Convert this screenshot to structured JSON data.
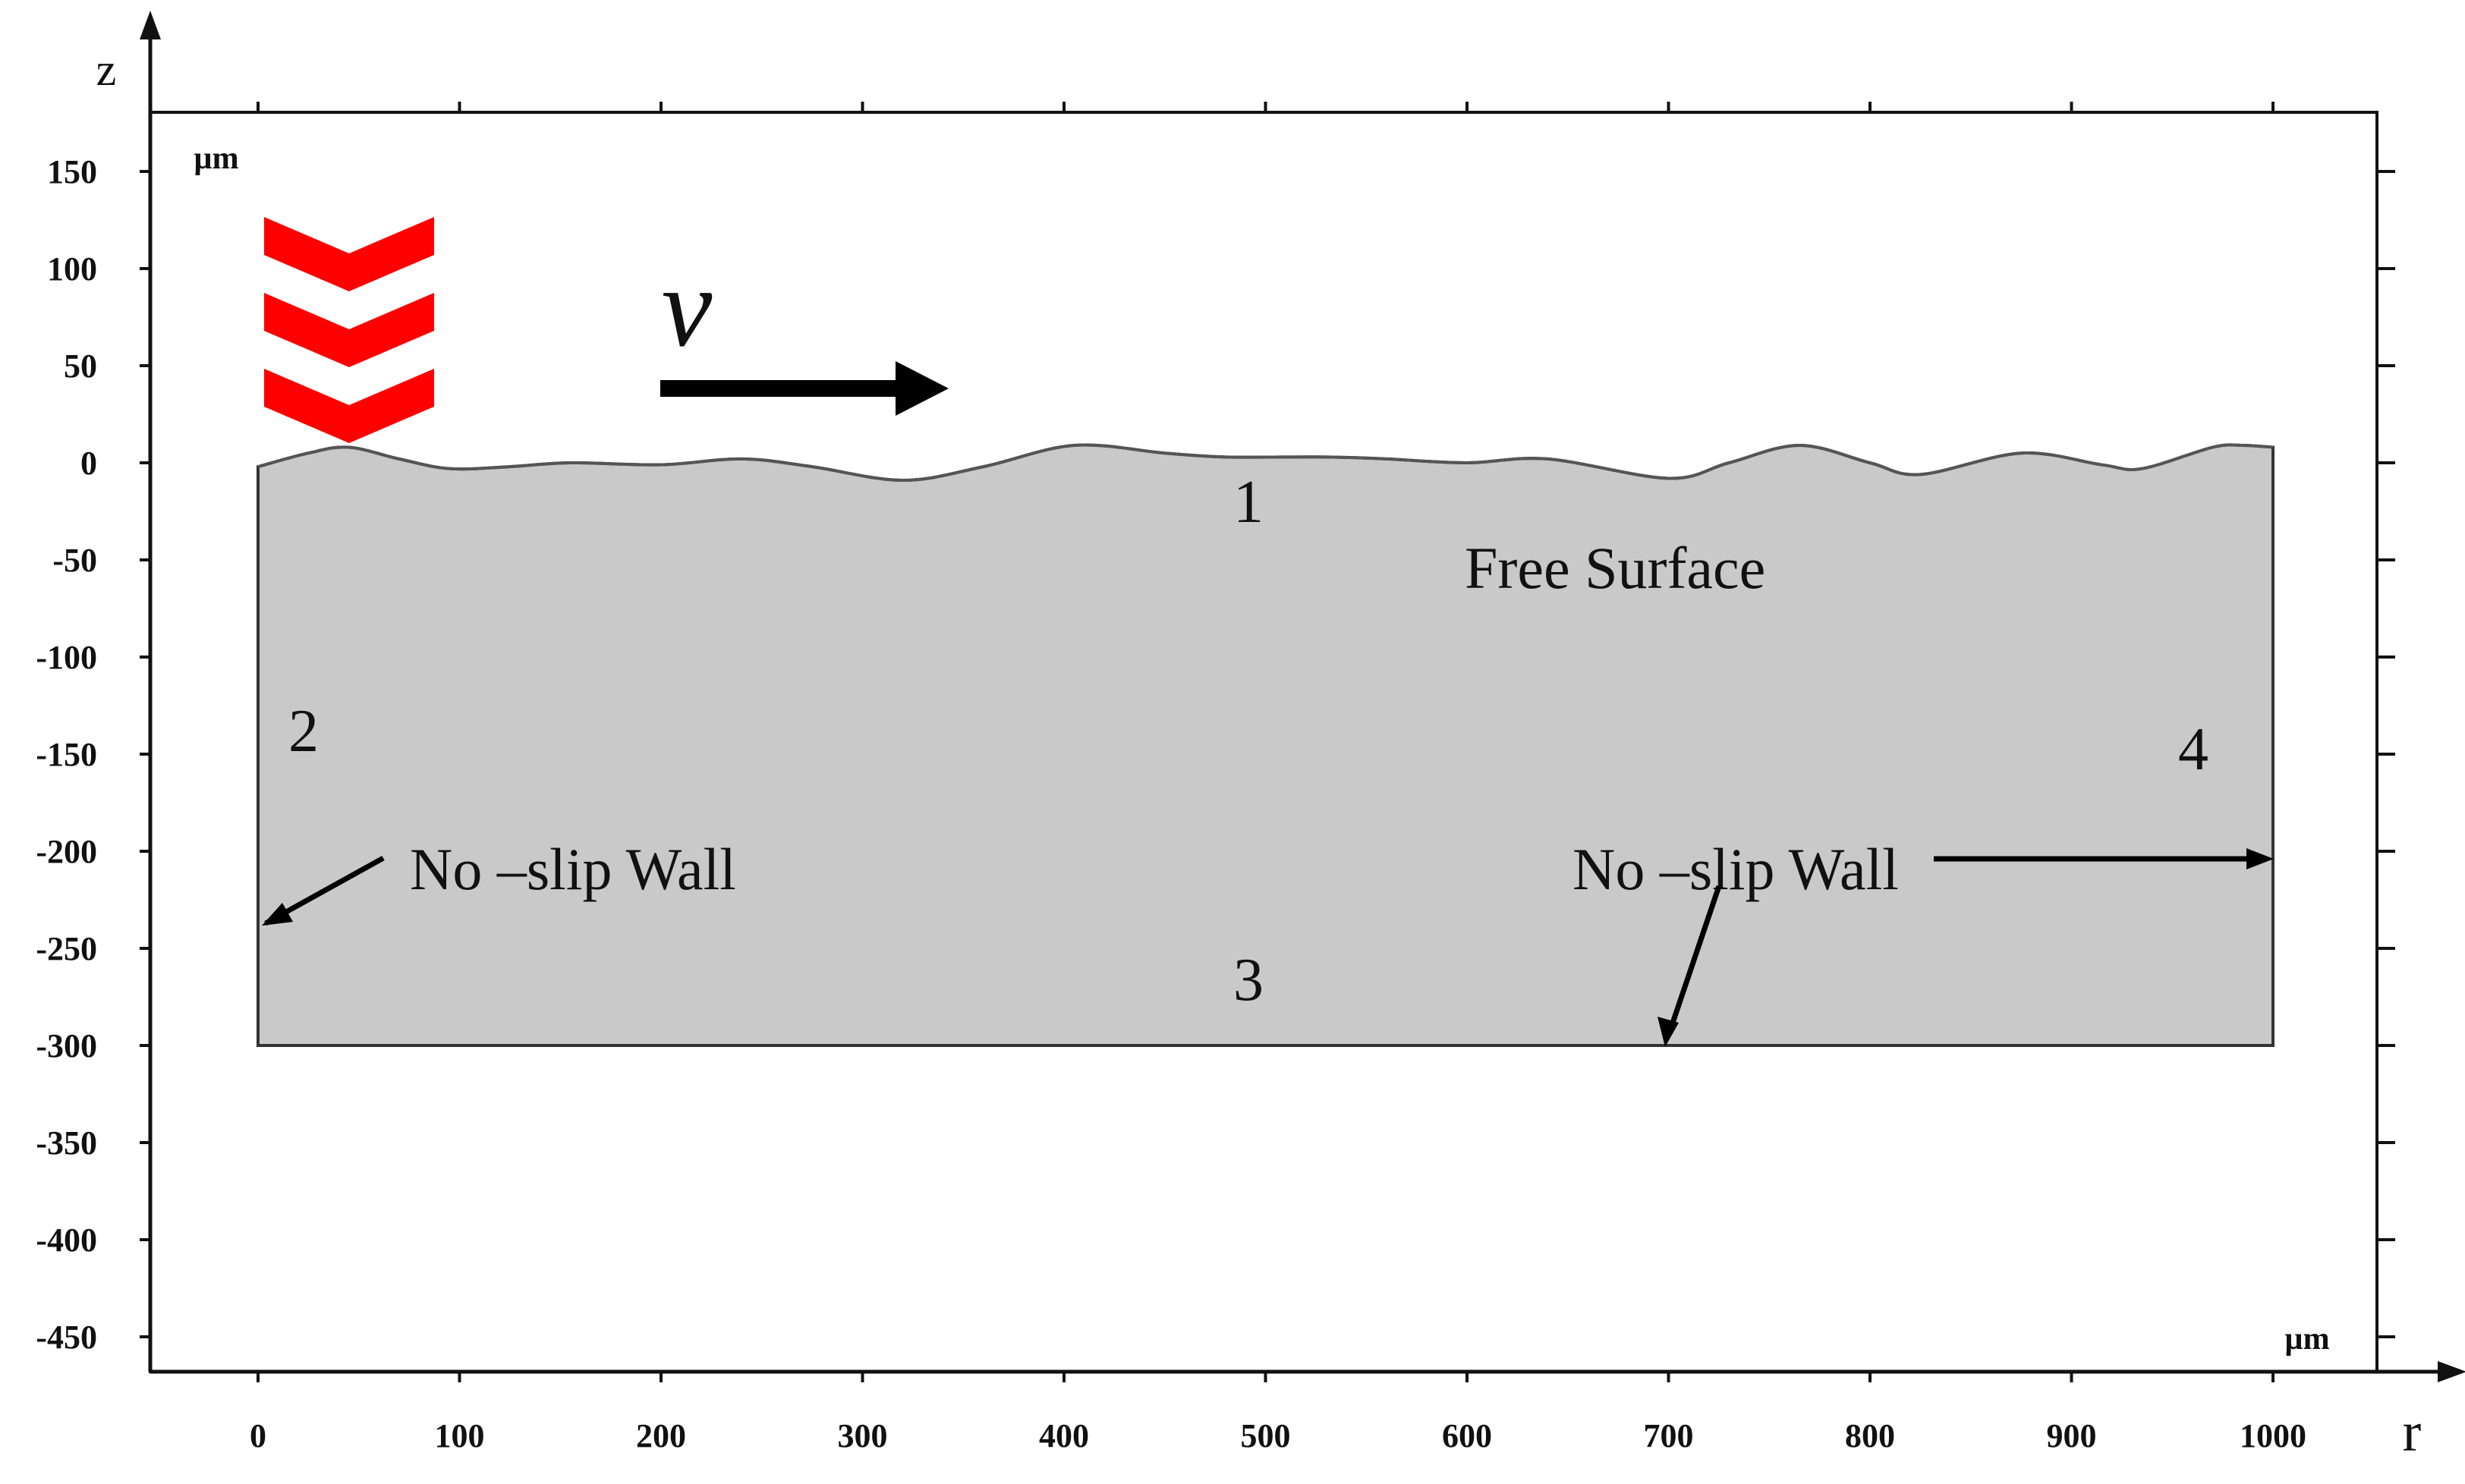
{
  "axes": {
    "x": {
      "name": "r",
      "unit": "µm",
      "ticks": [
        0,
        100,
        200,
        300,
        400,
        500,
        600,
        700,
        800,
        900,
        1000
      ]
    },
    "z": {
      "name": "z",
      "unit": "µm",
      "ticks": [
        150,
        100,
        50,
        0,
        -50,
        -100,
        -150,
        -200,
        -250,
        -300,
        -350,
        -400,
        -450
      ]
    }
  },
  "domain": {
    "r_range": [
      0,
      1000
    ],
    "z_range": [
      -300,
      0
    ],
    "fill_color": "#c9c9c9",
    "surface_profile": [
      [
        0,
        -2
      ],
      [
        25,
        5
      ],
      [
        45,
        8
      ],
      [
        70,
        2
      ],
      [
        95,
        -3
      ],
      [
        125,
        -2
      ],
      [
        155,
        0
      ],
      [
        200,
        -1
      ],
      [
        240,
        2
      ],
      [
        275,
        -2
      ],
      [
        320,
        -9
      ],
      [
        360,
        -2
      ],
      [
        405,
        9
      ],
      [
        450,
        5
      ],
      [
        480,
        3
      ],
      [
        530,
        3
      ],
      [
        560,
        2
      ],
      [
        600,
        0
      ],
      [
        640,
        2
      ],
      [
        700,
        -8
      ],
      [
        730,
        0
      ],
      [
        765,
        9
      ],
      [
        800,
        0
      ],
      [
        825,
        -6
      ],
      [
        875,
        5
      ],
      [
        915,
        -1
      ],
      [
        935,
        -3
      ],
      [
        970,
        8
      ],
      [
        985,
        9
      ],
      [
        1000,
        8
      ]
    ]
  },
  "boundaries": {
    "b1": "1",
    "b2": "2",
    "b3": "3",
    "b4": "4"
  },
  "annotations": {
    "free_surface": "Free Surface",
    "wall_left": "No –slip Wall",
    "wall_right": "No –slip Wall"
  },
  "velocity": {
    "label": "v"
  },
  "laser_marker": {
    "color": "#ff0000",
    "chevron_count": 3
  }
}
